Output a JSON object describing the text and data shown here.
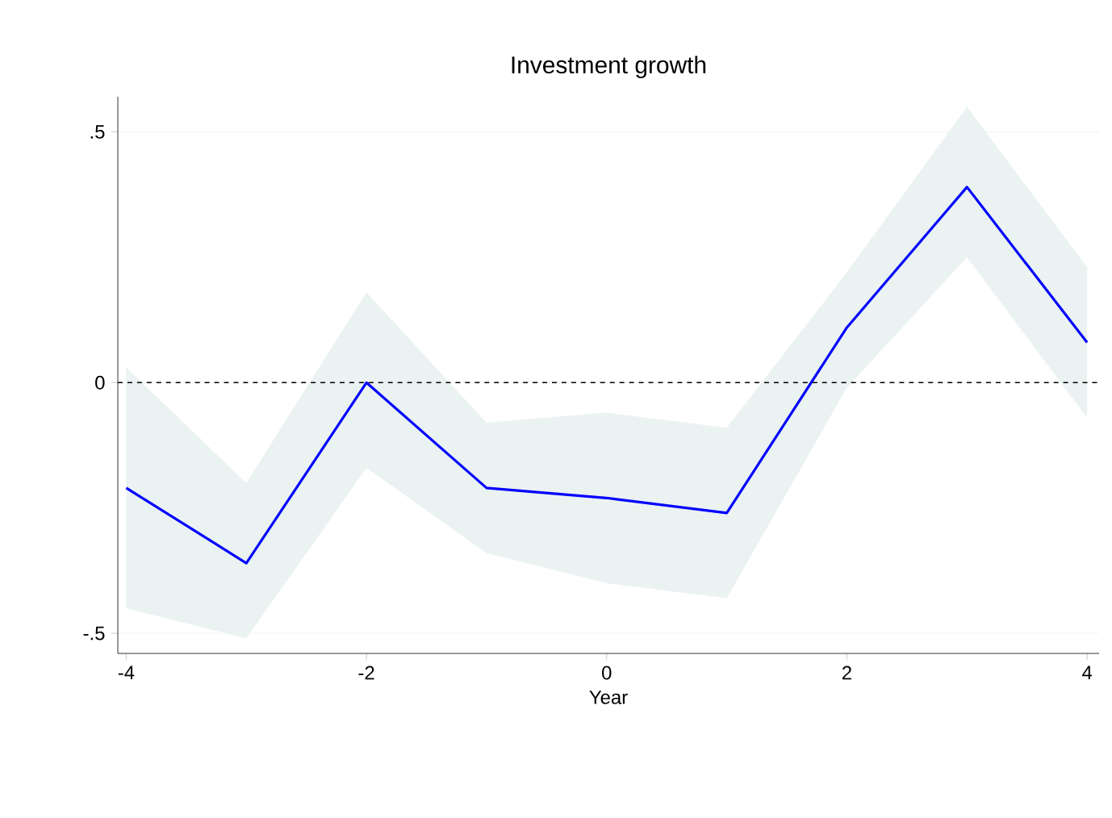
{
  "chart_data": {
    "type": "line",
    "title": "Investment growth",
    "xlabel": "Year",
    "x": [
      -4,
      -3,
      -2,
      -1,
      0,
      1,
      2,
      3,
      4
    ],
    "series": [
      {
        "color": "#0000ff",
        "values": [
          -0.21,
          -0.36,
          0.0,
          -0.21,
          -0.23,
          -0.26,
          0.11,
          0.39,
          0.08
        ],
        "lower": [
          -0.45,
          -0.51,
          -0.17,
          -0.34,
          -0.4,
          -0.43,
          -0.01,
          0.25,
          -0.07
        ],
        "upper": [
          0.03,
          -0.2,
          0.18,
          -0.08,
          -0.06,
          -0.09,
          0.22,
          0.55,
          0.23
        ]
      }
    ],
    "xlim": [
      -4.07,
      4.1
    ],
    "ylim": [
      -0.54,
      0.57
    ],
    "xticks": [
      -4,
      -2,
      0,
      2,
      4
    ],
    "yticks": [
      {
        "value": -0.5,
        "label": "-.5"
      },
      0,
      {
        "value": 0.5,
        "label": ".5"
      }
    ],
    "ref_lines": [
      {
        "axis": "y",
        "value": 0,
        "color": "#000000",
        "line_style": "dashed"
      }
    ],
    "grid": "y",
    "marker": "none",
    "line_style": "solid"
  }
}
